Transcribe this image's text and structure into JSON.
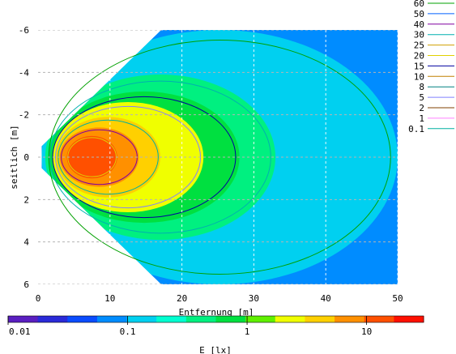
{
  "chart_data": {
    "type": "heatmap",
    "xlabel": "Entfernung [m]",
    "ylabel": "seitlich [m]",
    "x_ticks": [
      0,
      10,
      20,
      30,
      40,
      50
    ],
    "y_ticks": [
      -6,
      -4,
      -2,
      0,
      2,
      4,
      6
    ],
    "xlim": [
      0,
      50
    ],
    "ylim": [
      -6,
      6
    ],
    "grid": true,
    "colorbar": {
      "label": "E [lx]",
      "scale": "log",
      "range": [
        0.01,
        30
      ],
      "ticks": [
        "0.01",
        "0.1",
        "1",
        "10"
      ],
      "colors": [
        "#5a1fc0",
        "#2a2ad8",
        "#0a4cff",
        "#008cff",
        "#00d0f0",
        "#00ffd0",
        "#00f080",
        "#00e040",
        "#60f000",
        "#f0ff00",
        "#ffd000",
        "#ff9000",
        "#ff5000",
        "#ff1000"
      ]
    },
    "contour_legend": {
      "levels": [
        "60",
        "50",
        "40",
        "30",
        "25",
        "20",
        "15",
        "10",
        "8",
        "5",
        "2",
        "1",
        "0.1"
      ],
      "colors": [
        "#00a000",
        "#0060ff",
        "#8000a0",
        "#00b0b0",
        "#d0a000",
        "#e0d000",
        "#0000a0",
        "#c08000",
        "#008080",
        "#8080ff",
        "#804000",
        "#ff80ff",
        "#00b0a0"
      ]
    },
    "illuminance_zones": [
      {
        "value": 20,
        "x": [
          4,
          11
        ],
        "y": [
          -1.0,
          1.0
        ]
      },
      {
        "value": 10,
        "x": [
          3,
          14
        ],
        "y": [
          -1.4,
          1.4
        ]
      },
      {
        "value": 5,
        "x": [
          2.5,
          17
        ],
        "y": [
          -1.9,
          1.9
        ]
      },
      {
        "value": 2,
        "x": [
          2,
          23
        ],
        "y": [
          -2.6,
          2.6
        ]
      },
      {
        "value": 1,
        "x": [
          1.5,
          28
        ],
        "y": [
          -3.1,
          3.1
        ]
      },
      {
        "value": 0.3,
        "x": [
          1,
          33
        ],
        "y": [
          -3.9,
          3.9
        ]
      },
      {
        "value": 0.1,
        "x": [
          0.5,
          50
        ],
        "y": [
          -6,
          6
        ]
      }
    ]
  }
}
